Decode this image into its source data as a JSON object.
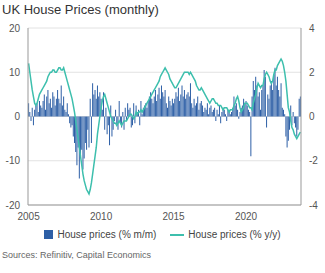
{
  "chart_data": {
    "type": "bar_line",
    "title": "UK House Prices (monthly)",
    "source": "Sources: Refinitiv, Capital Economics",
    "categories": [
      "2005",
      null,
      null,
      null,
      null,
      null,
      null,
      null,
      null,
      null,
      null,
      null,
      null,
      null,
      null,
      null,
      null,
      null,
      null,
      null,
      null,
      null,
      null,
      null,
      null,
      null,
      null,
      null,
      null,
      null,
      null,
      null,
      null,
      null,
      null,
      null,
      null,
      null,
      null,
      null,
      null,
      null,
      null,
      null,
      null,
      null,
      null,
      null,
      null,
      null,
      null,
      null,
      null,
      null,
      null,
      null,
      null,
      null,
      null,
      null,
      "2010",
      null,
      null,
      null,
      null,
      null,
      null,
      null,
      null,
      null,
      null,
      null,
      null,
      null,
      null,
      null,
      null,
      null,
      null,
      null,
      null,
      null,
      null,
      null,
      null,
      null,
      null,
      null,
      null,
      null,
      null,
      null,
      null,
      null,
      null,
      null,
      null,
      null,
      null,
      null,
      null,
      null,
      null,
      null,
      null,
      null,
      null,
      null,
      null,
      null,
      null,
      null,
      null,
      null,
      null,
      null,
      null,
      null,
      null,
      null,
      "2015",
      null,
      null,
      null,
      null,
      null,
      null,
      null,
      null,
      null,
      null,
      null,
      null,
      null,
      null,
      null,
      null,
      null,
      null,
      null,
      null,
      null,
      null,
      null,
      null,
      null,
      null,
      null,
      null,
      null,
      null,
      null,
      null,
      null,
      null,
      null,
      null,
      null,
      null,
      null,
      null,
      null,
      null,
      null,
      null,
      null,
      null,
      null,
      null,
      null,
      null,
      null,
      null,
      null,
      null,
      null,
      null,
      null,
      null,
      null,
      "2020",
      null,
      null,
      null,
      null,
      null,
      null,
      null,
      null,
      null,
      null,
      null,
      null,
      null,
      null,
      null,
      null,
      null,
      null,
      null,
      null,
      null,
      null,
      null,
      null,
      null,
      null,
      null,
      null,
      null,
      null,
      null,
      null,
      null,
      null,
      null,
      null,
      null,
      null,
      null,
      null,
      null,
      null,
      null,
      null,
      null
    ],
    "series": [
      {
        "name": "House prices (% m/m)",
        "type": "bar",
        "axis": "y2",
        "color": "#2d5fa6",
        "values": [
          0.6,
          0.2,
          -0.2,
          0.4,
          -0.4,
          0.3,
          0.5,
          0.6,
          0.2,
          0.7,
          0.5,
          0.4,
          0.7,
          1.0,
          0.3,
          0.9,
          1.2,
          0.6,
          0.8,
          0.4,
          1.1,
          0.9,
          0.5,
          0.8,
          1.2,
          0.8,
          0.6,
          1.4,
          0.5,
          0.9,
          0.3,
          0.2,
          0.6,
          0.1,
          -0.3,
          -0.5,
          -0.4,
          -0.9,
          -1.2,
          -1.6,
          -2.2,
          -1.4,
          -2.8,
          -1.8,
          -1.5,
          -2.4,
          -1.9,
          -1.2,
          -1.5,
          -0.6,
          -1.4,
          0.8,
          -1.2,
          1.5,
          1.0,
          1.2,
          0.8,
          1.4,
          0.9,
          1.1,
          0.8,
          0.3,
          1.1,
          -0.6,
          0.4,
          -0.8,
          -0.4,
          -1.3,
          0.5,
          -0.9,
          -0.6,
          -0.2,
          0.3,
          -0.4,
          -0.6,
          0.7,
          -0.3,
          -0.5,
          0.2,
          -0.6,
          0.4,
          -0.2,
          0.6,
          0.3,
          0.4,
          -0.5,
          -0.4,
          0.6,
          -0.3,
          0.5,
          0.2,
          0.3,
          -0.4,
          0.7,
          0.1,
          0.4,
          0.5,
          0.6,
          0.4,
          0.7,
          0.9,
          1.1,
          0.8,
          0.6,
          0.9,
          1.2,
          0.7,
          1.0,
          1.3,
          0.8,
          1.4,
          1.1,
          0.9,
          1.2,
          0.6,
          0.4,
          0.9,
          0.7,
          0.5,
          0.8,
          0.6,
          0.8,
          1.1,
          0.9,
          1.3,
          0.7,
          1.0,
          1.4,
          0.9,
          1.2,
          0.8,
          1.0,
          1.1,
          0.9,
          1.5,
          0.6,
          0.4,
          0.8,
          0.5,
          0.6,
          0.9,
          0.3,
          0.6,
          0.7,
          0.5,
          0.2,
          0.4,
          0.3,
          0.6,
          0.1,
          0.4,
          0.5,
          0.2,
          0.3,
          0.4,
          -0.2,
          0.3,
          0.1,
          0.5,
          -0.3,
          0.2,
          0.4,
          0.3,
          0.1,
          -0.2,
          0.3,
          0.2,
          0.1,
          0.2,
          0.4,
          0.9,
          0.5,
          0.6,
          0.3,
          -0.1,
          0.2,
          0.4,
          0.5,
          0.8,
          0.6,
          0.7,
          0.5,
          0.3,
          0.2,
          -1.8,
          0.9,
          1.6,
          1.2,
          1.8,
          1.4,
          0.9,
          1.1,
          0.3,
          1.2,
          1.4,
          2.1,
          1.8,
          -0.5,
          1.0,
          0.8,
          1.4,
          1.6,
          1.2,
          1.9,
          2.2,
          1.4,
          1.8,
          1.2,
          0.9,
          1.5,
          0.4,
          0.3,
          0.1,
          -0.9,
          -1.4,
          -1.1,
          -0.6,
          0.5,
          -0.4,
          0.2,
          -0.3,
          -0.5,
          -0.9,
          -0.6,
          0.8,
          0.9
        ]
      },
      {
        "name": "House prices (% y/y)",
        "type": "line",
        "color": "#3dbfad",
        "values": [
          12,
          10,
          8,
          6,
          4.5,
          3,
          2.5,
          3,
          4,
          5,
          5.5,
          6,
          6.5,
          7,
          7.5,
          8,
          9,
          9.5,
          10,
          10,
          10.5,
          10.5,
          10,
          10,
          10.5,
          11,
          11,
          10.5,
          10.5,
          11,
          10,
          9,
          8,
          7,
          6,
          5,
          4,
          2.5,
          1,
          -1,
          -3,
          -5,
          -7,
          -9,
          -11,
          -13,
          -14.5,
          -15.5,
          -16.5,
          -17,
          -17.5,
          -16.5,
          -15,
          -13,
          -11,
          -9,
          -7,
          -4,
          -2,
          0,
          2,
          3.5,
          4.5,
          5,
          4,
          3,
          2,
          1,
          0,
          -0.5,
          -1,
          -1.5,
          -1.5,
          -2,
          -1.5,
          -1,
          -1.5,
          -2,
          -1.5,
          -1,
          -1,
          -1,
          -0.5,
          0,
          0.5,
          0.5,
          0,
          -0.5,
          0,
          1,
          0.5,
          1,
          1,
          1.5,
          1,
          1.5,
          2,
          2.5,
          3,
          3.5,
          4,
          4.5,
          5,
          5.5,
          6,
          6.5,
          7,
          7.5,
          8,
          9,
          9.5,
          10,
          10.5,
          11,
          10.5,
          10,
          9.5,
          8.5,
          8,
          7.5,
          7,
          6.5,
          6.5,
          7,
          7.5,
          8,
          8.5,
          9,
          9.5,
          10,
          10,
          10,
          10,
          9.5,
          10,
          9.5,
          9,
          8.5,
          8,
          7,
          6.5,
          6,
          6,
          6.5,
          6,
          5.5,
          5,
          4.5,
          4,
          3.5,
          3,
          3.5,
          4,
          4,
          3.5,
          3,
          3,
          2.5,
          2.5,
          2.5,
          2,
          1.5,
          2,
          2,
          2,
          1.5,
          1,
          1.5,
          1.5,
          1.5,
          2.5,
          3,
          4,
          4.5,
          3.5,
          2,
          1,
          1.5,
          2,
          3,
          3,
          3,
          2.5,
          2,
          2,
          1.5,
          3,
          4,
          5,
          6.5,
          7.5,
          7,
          6.5,
          7,
          7,
          8.5,
          9.5,
          10,
          9.5,
          9,
          8,
          7.5,
          8,
          9.5,
          10.5,
          10.5,
          11.5,
          12,
          12.5,
          13,
          12.5,
          11.5,
          10,
          8,
          5,
          2,
          1,
          -1,
          -2.5,
          -3,
          -4,
          -4.5,
          -5,
          -4.5,
          -4,
          -3.5
        ]
      }
    ],
    "ylim": [
      -20,
      20
    ],
    "yticks": [
      -20,
      -10,
      0,
      10,
      20
    ],
    "y2lim": [
      -4,
      4
    ],
    "y2ticks": [
      -4,
      -2,
      0,
      2,
      4
    ],
    "grid": true,
    "legend": "bottom"
  }
}
